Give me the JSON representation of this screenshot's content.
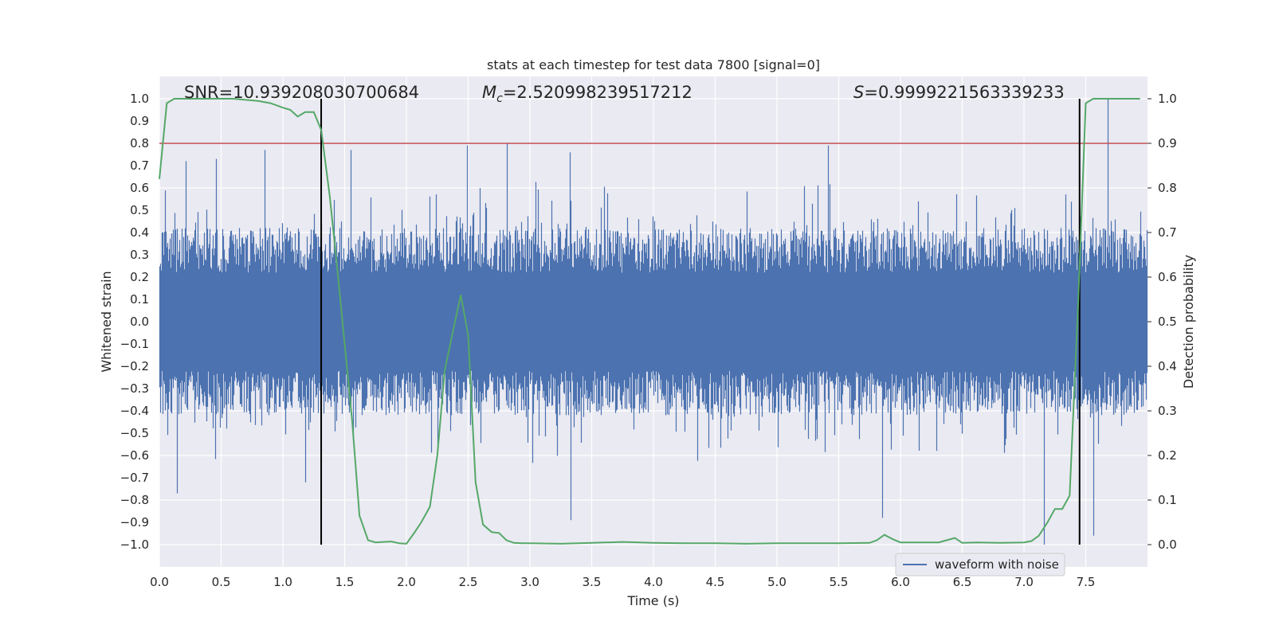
{
  "chart_data": {
    "type": "line",
    "title": "stats at each timestep for test data 7800 [signal=0]",
    "xlabel": "Time (s)",
    "ylabel": "Whitened strain",
    "y2label": "Detection probability",
    "xlim": [
      0.0,
      8.0
    ],
    "ylim": [
      -1.1,
      1.1
    ],
    "y2lim": [
      -0.05,
      1.05
    ],
    "xticks": [
      0.0,
      0.5,
      1.0,
      1.5,
      2.0,
      2.5,
      3.0,
      3.5,
      4.0,
      4.5,
      5.0,
      5.5,
      6.0,
      6.5,
      7.0,
      7.5
    ],
    "yticks": [
      1.0,
      0.9,
      0.8,
      0.7,
      0.6,
      0.5,
      0.4,
      0.3,
      0.2,
      0.1,
      0.0,
      -0.1,
      -0.2,
      -0.3,
      -0.4,
      -0.5,
      -0.6,
      -0.7,
      -0.8,
      -0.9,
      -1.0
    ],
    "ytick_labels": [
      "1.0",
      "0.9",
      "0.8",
      "0.7",
      "0.6",
      "0.5",
      "0.4",
      "0.3",
      "0.2",
      "0.1",
      "0.0",
      "−0.1",
      "−0.2",
      "−0.3",
      "−0.4",
      "−0.5",
      "−0.6",
      "−0.7",
      "−0.8",
      "−0.9",
      "−1.0"
    ],
    "y2ticks": [
      1.0,
      0.9,
      0.8,
      0.7,
      0.6,
      0.5,
      0.4,
      0.3,
      0.2,
      0.1,
      0.0
    ],
    "grid": true,
    "legend": {
      "position": "bottom-right",
      "entries": [
        "waveform with noise"
      ]
    },
    "annotations": {
      "snr": "SNR=10.939208030700684",
      "mc_symbol": "M",
      "mc_sub": "c",
      "mc_value": "=2.520998239517212",
      "s_symbol": "S",
      "s_value": "=0.9999221563339233"
    },
    "threshold": {
      "y2": 0.9,
      "color": "#c44e52"
    },
    "vlines": [
      1.31,
      7.45
    ],
    "series": [
      {
        "name": "waveform with noise",
        "axis": "left",
        "color": "#4c72b0",
        "kind": "strain",
        "spike_max_x": [
          0.21,
          0.46,
          0.85,
          1.55,
          2.49,
          2.81,
          3.32,
          5.41,
          7.68
        ],
        "spike_max_y": [
          0.72,
          0.73,
          0.77,
          0.77,
          0.79,
          0.8,
          0.76,
          0.79,
          1.0
        ],
        "spike_min_x": [
          0.14,
          1.18,
          3.33,
          5.85,
          7.16,
          7.56
        ],
        "spike_min_y": [
          -0.77,
          -0.72,
          -0.89,
          -0.88,
          -1.0,
          -0.96
        ]
      },
      {
        "name": "detection probability",
        "axis": "right",
        "color": "#55a868",
        "x": [
          0.0,
          0.06,
          0.12,
          0.18,
          0.25,
          0.4,
          0.6,
          0.8,
          0.9,
          1.0,
          1.06,
          1.12,
          1.18,
          1.25,
          1.31,
          1.38,
          1.44,
          1.5,
          1.56,
          1.62,
          1.69,
          1.75,
          1.81,
          1.88,
          1.94,
          2.0,
          2.06,
          2.12,
          2.19,
          2.25,
          2.31,
          2.37,
          2.44,
          2.5,
          2.56,
          2.62,
          2.69,
          2.75,
          2.81,
          2.87,
          2.94,
          3.0,
          3.25,
          3.5,
          3.75,
          4.0,
          4.25,
          4.5,
          4.75,
          5.0,
          5.25,
          5.5,
          5.75,
          5.81,
          5.87,
          5.94,
          6.0,
          6.31,
          6.44,
          6.5,
          6.62,
          6.81,
          7.0,
          7.06,
          7.12,
          7.19,
          7.25,
          7.31,
          7.37,
          7.44,
          7.5,
          7.56,
          7.62,
          7.69,
          7.75,
          7.81,
          7.87,
          7.94
        ],
        "values": [
          0.82,
          0.99,
          1.0,
          1.0,
          1.0,
          1.0,
          1.0,
          0.995,
          0.99,
          0.98,
          0.975,
          0.96,
          0.97,
          0.97,
          0.93,
          0.78,
          0.62,
          0.45,
          0.28,
          0.065,
          0.01,
          0.005,
          0.006,
          0.007,
          0.003,
          0.002,
          0.025,
          0.05,
          0.085,
          0.2,
          0.39,
          0.47,
          0.56,
          0.47,
          0.14,
          0.045,
          0.028,
          0.026,
          0.01,
          0.004,
          0.003,
          0.003,
          0.002,
          0.004,
          0.006,
          0.004,
          0.003,
          0.003,
          0.002,
          0.003,
          0.003,
          0.003,
          0.004,
          0.01,
          0.022,
          0.012,
          0.005,
          0.005,
          0.015,
          0.004,
          0.005,
          0.004,
          0.005,
          0.008,
          0.02,
          0.05,
          0.08,
          0.08,
          0.11,
          0.55,
          0.99,
          1.0,
          1.0,
          1.0,
          1.0,
          1.0,
          1.0,
          1.0
        ]
      }
    ]
  }
}
